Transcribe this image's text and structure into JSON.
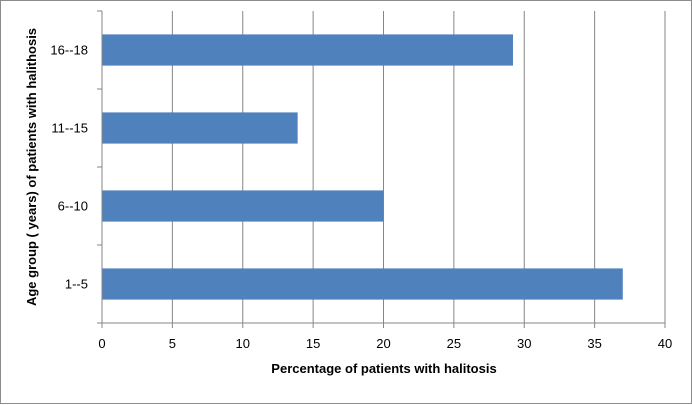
{
  "chart_data": {
    "type": "bar",
    "orientation": "horizontal",
    "categories": [
      "16--18",
      "11--15",
      "6--10",
      "1--5"
    ],
    "values": [
      29.2,
      13.9,
      20.0,
      37.0
    ],
    "xlabel": "Percentage  of patients  with halitosis",
    "ylabel": "Age group ( years) of patients with halithosis",
    "xlim": [
      0,
      40
    ],
    "xticks": [
      0,
      5,
      10,
      15,
      20,
      25,
      30,
      35,
      40
    ],
    "grid": "vertical",
    "legend": "none",
    "bar_color": "#4f81bd"
  }
}
